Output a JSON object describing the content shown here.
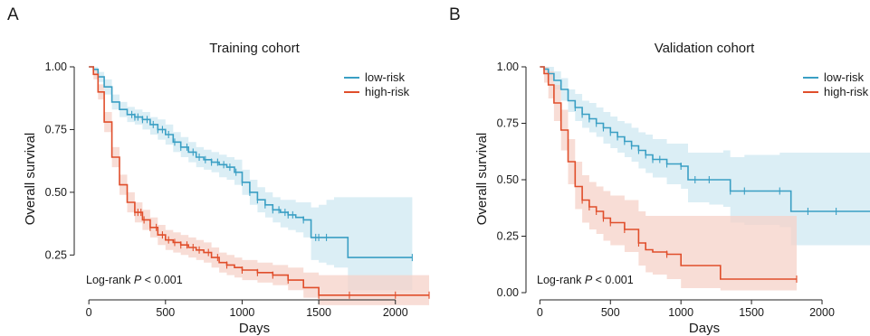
{
  "chart_data": [
    {
      "panel": "A",
      "type": "line",
      "title": "Training cohort",
      "xlabel": "Days",
      "ylabel": "Overall survival",
      "xlim": [
        -60,
        2220
      ],
      "ylim": [
        0.1,
        1.0
      ],
      "x_ticks": [
        0,
        500,
        1000,
        1500,
        2000
      ],
      "y_ticks": [
        "0.25",
        "0.50",
        "0.75",
        "1.00"
      ],
      "legend_position": "top-right",
      "annotation": {
        "prefix": "Log-rank ",
        "italic": "P",
        "suffix": " < 0.001"
      },
      "series": [
        {
          "name": "low-risk",
          "color": "#3a9fc4",
          "band_color": "#cfe8f2",
          "x": [
            0,
            30,
            60,
            100,
            150,
            200,
            250,
            300,
            350,
            400,
            450,
            500,
            550,
            600,
            650,
            700,
            750,
            800,
            850,
            900,
            950,
            1000,
            1050,
            1100,
            1150,
            1200,
            1250,
            1300,
            1350,
            1400,
            1450,
            1500,
            1550,
            1600,
            1680,
            1690,
            2000,
            2110
          ],
          "y": [
            1.0,
            0.99,
            0.96,
            0.92,
            0.86,
            0.83,
            0.81,
            0.8,
            0.79,
            0.77,
            0.75,
            0.73,
            0.7,
            0.68,
            0.66,
            0.64,
            0.63,
            0.62,
            0.61,
            0.6,
            0.58,
            0.54,
            0.5,
            0.47,
            0.45,
            0.43,
            0.42,
            0.41,
            0.4,
            0.39,
            0.32,
            0.32,
            0.32,
            0.32,
            0.32,
            0.24,
            0.24,
            0.24
          ],
          "lower": [
            1.0,
            0.98,
            0.94,
            0.89,
            0.83,
            0.8,
            0.78,
            0.77,
            0.75,
            0.73,
            0.71,
            0.69,
            0.66,
            0.64,
            0.62,
            0.6,
            0.59,
            0.58,
            0.56,
            0.55,
            0.53,
            0.49,
            0.45,
            0.42,
            0.4,
            0.38,
            0.36,
            0.35,
            0.34,
            0.32,
            0.23,
            0.22,
            0.21,
            0.2,
            0.2,
            0.11,
            0.11,
            0.11
          ],
          "upper": [
            1.0,
            1.0,
            0.98,
            0.95,
            0.89,
            0.86,
            0.84,
            0.83,
            0.82,
            0.8,
            0.79,
            0.77,
            0.74,
            0.72,
            0.7,
            0.68,
            0.67,
            0.66,
            0.65,
            0.64,
            0.63,
            0.59,
            0.55,
            0.52,
            0.5,
            0.48,
            0.47,
            0.47,
            0.46,
            0.46,
            0.44,
            0.45,
            0.47,
            0.48,
            0.48,
            0.48,
            0.48,
            0.48
          ],
          "censor_x": [
            280,
            300,
            320,
            350,
            380,
            420,
            450,
            480,
            520,
            560,
            600,
            640,
            680,
            720,
            760,
            800,
            840,
            880,
            920,
            960,
            1000,
            1050,
            1100,
            1150,
            1200,
            1240,
            1280,
            1300,
            1330,
            1400,
            1480,
            1500,
            1550,
            2110
          ]
        },
        {
          "name": "high-risk",
          "color": "#e04e2b",
          "band_color": "#f6d2c8",
          "x": [
            0,
            30,
            60,
            100,
            150,
            200,
            250,
            300,
            350,
            400,
            450,
            500,
            550,
            600,
            650,
            700,
            750,
            800,
            850,
            900,
            950,
            1000,
            1100,
            1200,
            1300,
            1400,
            1500,
            1600,
            1700,
            2220
          ],
          "y": [
            1.0,
            0.97,
            0.9,
            0.78,
            0.64,
            0.53,
            0.46,
            0.42,
            0.39,
            0.36,
            0.33,
            0.31,
            0.3,
            0.29,
            0.28,
            0.27,
            0.26,
            0.24,
            0.22,
            0.21,
            0.2,
            0.19,
            0.18,
            0.17,
            0.15,
            0.12,
            0.09,
            0.09,
            0.09,
            0.09
          ],
          "lower": [
            1.0,
            0.95,
            0.87,
            0.74,
            0.6,
            0.49,
            0.42,
            0.38,
            0.35,
            0.32,
            0.29,
            0.27,
            0.26,
            0.25,
            0.24,
            0.23,
            0.22,
            0.2,
            0.18,
            0.17,
            0.16,
            0.15,
            0.14,
            0.13,
            0.11,
            0.08,
            0.05,
            0.05,
            0.05,
            0.05
          ],
          "upper": [
            1.0,
            0.99,
            0.93,
            0.82,
            0.68,
            0.57,
            0.5,
            0.46,
            0.43,
            0.4,
            0.37,
            0.35,
            0.34,
            0.33,
            0.32,
            0.31,
            0.3,
            0.28,
            0.26,
            0.25,
            0.24,
            0.23,
            0.22,
            0.21,
            0.2,
            0.18,
            0.17,
            0.17,
            0.17,
            0.17
          ],
          "censor_x": [
            300,
            320,
            340,
            360,
            400,
            440,
            480,
            520,
            560,
            600,
            640,
            680,
            720,
            780,
            840,
            900,
            1000,
            1100,
            1200,
            1300,
            1500,
            1700,
            2000,
            2220
          ]
        }
      ]
    },
    {
      "panel": "B",
      "type": "line",
      "title": "Validation cohort",
      "xlabel": "Days",
      "ylabel": "Overall survival",
      "xlim": [
        -60,
        2340
      ],
      "ylim": [
        0.0,
        1.0
      ],
      "x_ticks": [
        0,
        500,
        1000,
        1500,
        2000
      ],
      "y_ticks": [
        "0.00",
        "0.25",
        "0.50",
        "0.75",
        "1.00"
      ],
      "legend_position": "top-right",
      "annotation": {
        "prefix": "Log-rank ",
        "italic": "P",
        "suffix": " < 0.001"
      },
      "series": [
        {
          "name": "low-risk",
          "color": "#3a9fc4",
          "band_color": "#cfe8f2",
          "x": [
            0,
            30,
            60,
            100,
            150,
            200,
            250,
            300,
            350,
            400,
            450,
            500,
            550,
            600,
            650,
            700,
            750,
            800,
            900,
            1000,
            1050,
            1200,
            1300,
            1350,
            1450,
            1700,
            1780,
            2340
          ],
          "y": [
            1.0,
            0.99,
            0.97,
            0.94,
            0.9,
            0.85,
            0.82,
            0.79,
            0.77,
            0.75,
            0.73,
            0.71,
            0.69,
            0.67,
            0.65,
            0.63,
            0.61,
            0.59,
            0.57,
            0.56,
            0.5,
            0.5,
            0.5,
            0.45,
            0.45,
            0.45,
            0.36,
            0.36
          ],
          "lower": [
            1.0,
            0.97,
            0.94,
            0.9,
            0.85,
            0.8,
            0.76,
            0.73,
            0.71,
            0.69,
            0.66,
            0.64,
            0.62,
            0.6,
            0.58,
            0.55,
            0.53,
            0.51,
            0.48,
            0.46,
            0.4,
            0.39,
            0.38,
            0.31,
            0.3,
            0.29,
            0.21,
            0.21
          ],
          "upper": [
            1.0,
            1.0,
            1.0,
            0.98,
            0.95,
            0.9,
            0.88,
            0.85,
            0.84,
            0.82,
            0.8,
            0.78,
            0.76,
            0.75,
            0.73,
            0.71,
            0.7,
            0.68,
            0.66,
            0.66,
            0.62,
            0.62,
            0.63,
            0.6,
            0.61,
            0.62,
            0.62,
            0.62
          ],
          "censor_x": [
            250,
            300,
            350,
            400,
            450,
            500,
            550,
            600,
            650,
            700,
            750,
            800,
            850,
            900,
            1000,
            1100,
            1200,
            1350,
            1450,
            1700,
            1900,
            2100
          ]
        },
        {
          "name": "high-risk",
          "color": "#e04e2b",
          "band_color": "#f6d2c8",
          "x": [
            0,
            30,
            60,
            100,
            150,
            200,
            250,
            300,
            350,
            400,
            450,
            500,
            600,
            700,
            750,
            800,
            900,
            1000,
            1100,
            1200,
            1280,
            1820
          ],
          "y": [
            1.0,
            0.97,
            0.92,
            0.84,
            0.72,
            0.58,
            0.47,
            0.41,
            0.38,
            0.36,
            0.33,
            0.31,
            0.28,
            0.22,
            0.19,
            0.18,
            0.17,
            0.12,
            0.12,
            0.12,
            0.06,
            0.06
          ],
          "lower": [
            1.0,
            0.93,
            0.86,
            0.76,
            0.63,
            0.48,
            0.37,
            0.31,
            0.28,
            0.26,
            0.23,
            0.21,
            0.18,
            0.12,
            0.09,
            0.08,
            0.06,
            0.02,
            0.02,
            0.02,
            0.01,
            0.01
          ],
          "upper": [
            1.0,
            1.0,
            0.98,
            0.92,
            0.81,
            0.68,
            0.58,
            0.52,
            0.49,
            0.47,
            0.45,
            0.43,
            0.41,
            0.36,
            0.34,
            0.34,
            0.34,
            0.34,
            0.34,
            0.34,
            0.34,
            0.34
          ],
          "censor_x": [
            300,
            350,
            400,
            450,
            500,
            600,
            700,
            900,
            1820
          ]
        }
      ]
    }
  ],
  "panels": [
    {
      "letter": "A"
    },
    {
      "letter": "B"
    }
  ]
}
